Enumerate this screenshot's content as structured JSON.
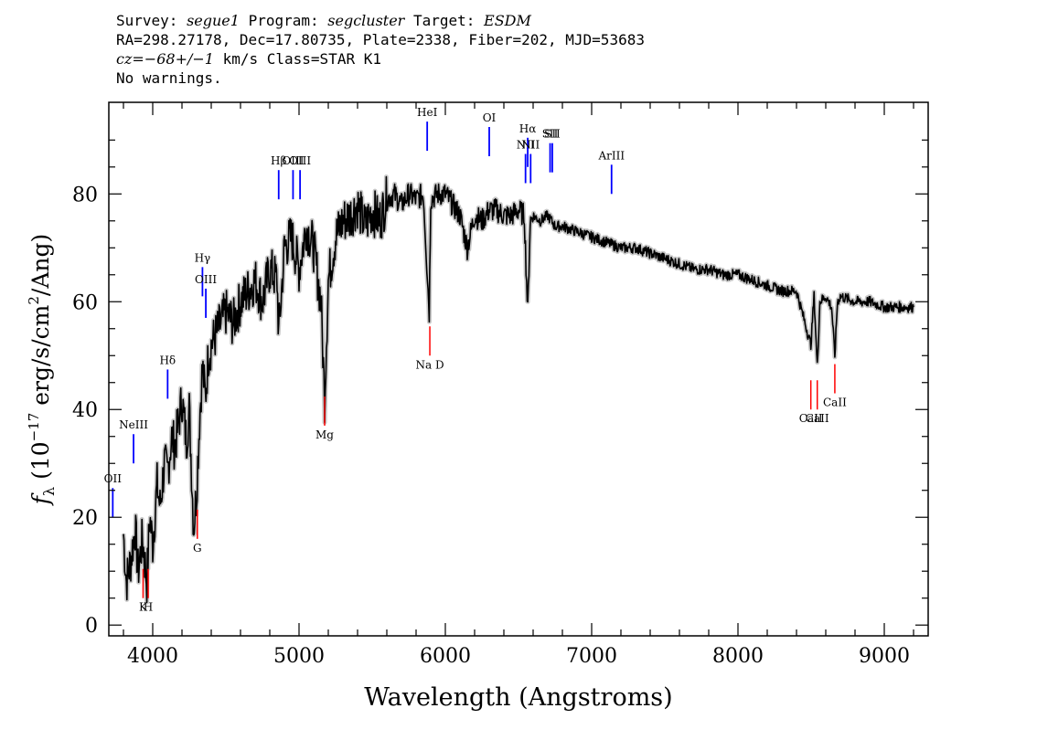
{
  "header": {
    "line1": {
      "survey_label": "Survey: ",
      "survey": "segue1",
      "program_label": " Program: ",
      "program": "segcluster",
      "target_label": " Target: ",
      "target": "ESDM"
    },
    "line2": "RA=298.27178, Dec=17.80735, Plate=2338, Fiber=202, MJD=53683",
    "line3": {
      "cz": "cz=−68+/−1",
      "rest": " km/s Class=STAR K1"
    },
    "line4": "No warnings."
  },
  "chart_data": {
    "type": "line",
    "title": "",
    "xlabel": "Wavelength (Angstroms)",
    "ylabel": "f_λ (10^-17 erg/s/cm^2/Ang)",
    "xlim": [
      3700,
      9300
    ],
    "ylim": [
      -2,
      97
    ],
    "x_ticks": [
      4000,
      5000,
      6000,
      7000,
      8000,
      9000
    ],
    "y_ticks": [
      0,
      20,
      40,
      60,
      80
    ],
    "grid": false,
    "series": [
      {
        "x": [
          3800,
          3820,
          3850,
          3880,
          3900,
          3930,
          3960,
          3980,
          4000,
          4030,
          4050,
          4080,
          4100,
          4130,
          4150,
          4180,
          4200,
          4230,
          4250,
          4280,
          4300,
          4320,
          4340,
          4360,
          4380,
          4400,
          4450,
          4500,
          4550,
          4600,
          4650,
          4700,
          4750,
          4800,
          4850,
          4861,
          4900,
          4950,
          5000,
          5050,
          5100,
          5150,
          5175,
          5200,
          5250,
          5300,
          5350,
          5400,
          5450,
          5500,
          5550,
          5600,
          5650,
          5700,
          5750,
          5800,
          5850,
          5890,
          5900,
          5950,
          6000,
          6050,
          6100,
          6150,
          6200,
          6250,
          6300,
          6350,
          6400,
          6450,
          6500,
          6540,
          6563,
          6580,
          6600,
          6650,
          6700,
          6750,
          6800,
          6900,
          7000,
          7100,
          7200,
          7300,
          7400,
          7500,
          7600,
          7700,
          7800,
          7900,
          8000,
          8100,
          8200,
          8300,
          8400,
          8498,
          8520,
          8542,
          8560,
          8600,
          8640,
          8662,
          8680,
          8700,
          8800,
          8900,
          9000,
          9100,
          9200
        ],
        "y": [
          17,
          8,
          12,
          18,
          10,
          16,
          8,
          20,
          15,
          26,
          22,
          30,
          28,
          35,
          33,
          38,
          42,
          34,
          40,
          18,
          25,
          38,
          48,
          42,
          50,
          52,
          55,
          58,
          56,
          60,
          62,
          64,
          60,
          66,
          64,
          54,
          70,
          72,
          66,
          74,
          70,
          60,
          42,
          64,
          72,
          75,
          76,
          78,
          74,
          77,
          75,
          79,
          80,
          78,
          80,
          79,
          80,
          58,
          79,
          80,
          80,
          78,
          76,
          70,
          76,
          75,
          77,
          77,
          76,
          76,
          77,
          76,
          58,
          75,
          76,
          75,
          76,
          74,
          74,
          73,
          72,
          71,
          70,
          70,
          69,
          68,
          67,
          66,
          66,
          65,
          65,
          64,
          63,
          62,
          62,
          52,
          61,
          48,
          60,
          61,
          59,
          50,
          60,
          61,
          60,
          60,
          59,
          59,
          59
        ]
      }
    ],
    "emission_lines": [
      {
        "label": "NeIII",
        "x": 3869,
        "y": 30
      },
      {
        "label": "Hδ",
        "x": 4102,
        "y": 42
      },
      {
        "label": "Hγ",
        "x": 4340,
        "y": 61
      },
      {
        "label": "OIII",
        "x": 4363,
        "y": 57
      },
      {
        "label": "Hβ",
        "x": 4861,
        "y": 79
      },
      {
        "label": "OIII",
        "x": 4959,
        "y": 79
      },
      {
        "label": "OIII",
        "x": 5007,
        "y": 79
      },
      {
        "label": "HeI",
        "x": 5876,
        "y": 88
      },
      {
        "label": "OI",
        "x": 6300,
        "y": 87
      },
      {
        "label": "NII",
        "x": 6548,
        "y": 82
      },
      {
        "label": "Hα",
        "x": 6563,
        "y": 85
      },
      {
        "label": "NII",
        "x": 6583,
        "y": 82
      },
      {
        "label": "SII",
        "x": 6716,
        "y": 84
      },
      {
        "label": "SII",
        "x": 6731,
        "y": 84
      },
      {
        "label": "ArIII",
        "x": 7136,
        "y": 80
      },
      {
        "label": "OII",
        "x": 3727,
        "y": 20
      }
    ],
    "absorption_lines": [
      {
        "label": "K",
        "x": 3934,
        "y": 5
      },
      {
        "label": "H",
        "x": 3969,
        "y": 5
      },
      {
        "label": "G",
        "x": 4305,
        "y": 16
      },
      {
        "label": "Mg",
        "x": 5175,
        "y": 37
      },
      {
        "label": "Na D",
        "x": 5894,
        "y": 50
      },
      {
        "label": "CaII",
        "x": 8498,
        "y": 40
      },
      {
        "label": "CaII",
        "x": 8542,
        "y": 40
      },
      {
        "label": "CaII",
        "x": 8662,
        "y": 43
      }
    ],
    "colors": {
      "spectrum": "#000000",
      "error": "#c8c8c8",
      "emission": "#0000ff",
      "absorption": "#ff0000"
    }
  }
}
